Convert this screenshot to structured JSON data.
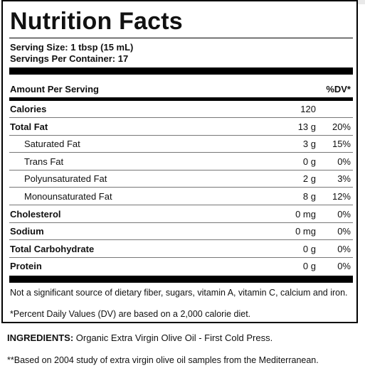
{
  "title": "Nutrition Facts",
  "serving_size": "Serving Size: 1 tbsp (15 mL)",
  "servings_per_container": "Servings Per Container: 17",
  "header": {
    "amount_per_serving": "Amount Per Serving",
    "dv": "%DV*"
  },
  "calories": {
    "name": "Calories",
    "amount": "120",
    "dv": ""
  },
  "nutrients": [
    {
      "name": "Total Fat",
      "amount": "13 g",
      "dv": "20%"
    },
    {
      "name": "Saturated Fat",
      "amount": "3 g",
      "dv": "15%"
    },
    {
      "name": "Trans Fat",
      "amount": "0 g",
      "dv": "0%"
    },
    {
      "name": "Polyunsaturated Fat",
      "amount": "2 g",
      "dv": "3%"
    },
    {
      "name": "Monounsaturated Fat",
      "amount": "8 g",
      "dv": "12%"
    },
    {
      "name": "Cholesterol",
      "amount": "0 mg",
      "dv": "0%"
    },
    {
      "name": "Sodium",
      "amount": "0 mg",
      "dv": "0%"
    },
    {
      "name": "Total Carbohydrate",
      "amount": "0 g",
      "dv": "0%"
    },
    {
      "name": "Protein",
      "amount": "0 g",
      "dv": "0%"
    }
  ],
  "not_significant": "Not a significant source of dietary fiber, sugars, vitamin A, vitamin C, calcium and iron.",
  "dv_note": "*Percent Daily Values (DV) are based on a 2,000 calorie diet.",
  "ingredients": {
    "label": "INGREDIENTS:",
    "text": " Organic Extra Virgin Olive Oil - First Cold Press."
  },
  "footnote": "**Based on 2004 study of extra virgin olive oil samples from the Mediterranean."
}
